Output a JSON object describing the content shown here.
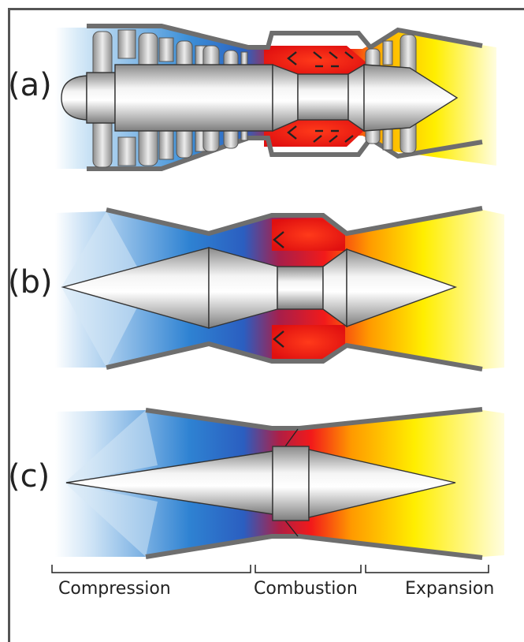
{
  "panels": [
    {
      "label": "(a)"
    },
    {
      "label": "(b)"
    },
    {
      "label": "(c)"
    }
  ],
  "stages": [
    {
      "label": "Compression"
    },
    {
      "label": "Combustion"
    },
    {
      "label": "Expansion"
    }
  ],
  "colors": {
    "cold": "#0a6cc8",
    "hot": "#f21a1a",
    "exhaust": "#ffee00",
    "casing": "#6e6e6e"
  }
}
